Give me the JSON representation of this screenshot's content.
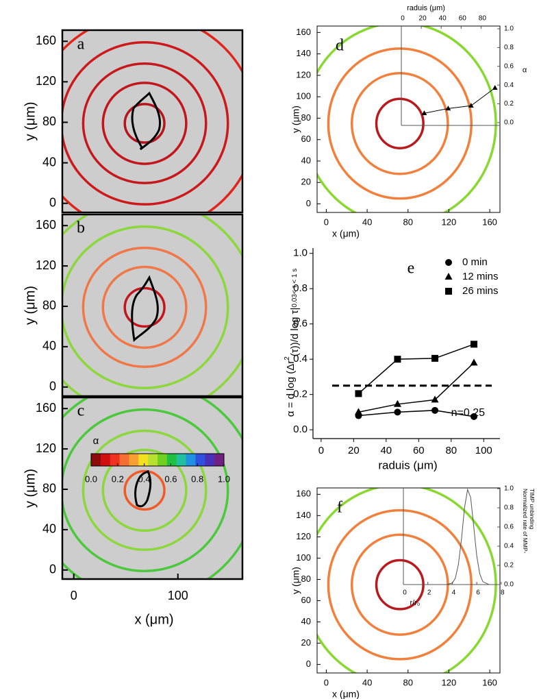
{
  "chart_data": [
    {
      "type": "rings",
      "label": "a",
      "ylabel": "y (μm)",
      "xlim": [
        -11,
        162
      ],
      "ylim": [
        -9,
        171
      ],
      "yticks": [
        0,
        40,
        80,
        120,
        160
      ],
      "center": [
        68,
        79
      ],
      "rings": [
        {
          "radius": 19,
          "color": "#b5141c"
        },
        {
          "radius": 40,
          "color": "#c0161c"
        },
        {
          "radius": 59,
          "color": "#c4181c"
        },
        {
          "radius": 80,
          "color": "#cc1a1c"
        },
        {
          "radius": 107,
          "color": "#e0261c"
        }
      ]
    },
    {
      "type": "rings",
      "label": "b",
      "ylabel": "y (μm)",
      "xlim": [
        -11,
        162
      ],
      "ylim": [
        -9,
        171
      ],
      "yticks": [
        0,
        40,
        80,
        120,
        160
      ],
      "center": [
        68,
        79
      ],
      "rings": [
        {
          "radius": 19,
          "color": "#c0161c"
        },
        {
          "radius": 40,
          "color": "#f07848"
        },
        {
          "radius": 59,
          "color": "#f07848"
        },
        {
          "radius": 80,
          "color": "#8cd83c"
        },
        {
          "radius": 107,
          "color": "#8cd83c"
        }
      ]
    },
    {
      "type": "rings",
      "label": "c",
      "ylabel": "y (μm)",
      "xlabel": "x (μm)",
      "xlim": [
        -11,
        162
      ],
      "ylim": [
        -9,
        171
      ],
      "xticks": [
        0,
        100
      ],
      "yticks": [
        0,
        40,
        80,
        120,
        160
      ],
      "center": [
        68,
        79
      ],
      "rings": [
        {
          "radius": 19,
          "color": "#f05a28"
        },
        {
          "radius": 40,
          "color": "#8cd83c"
        },
        {
          "radius": 59,
          "color": "#8cd83c"
        },
        {
          "radius": 80,
          "color": "#4cc83c"
        },
        {
          "radius": 107,
          "color": "#4cc83c"
        }
      ]
    },
    {
      "type": "rings",
      "label": "d",
      "ylabel": "y (μm)",
      "xlabel": "x (μm)",
      "xlim": [
        -9,
        170
      ],
      "ylim": [
        -8,
        166
      ],
      "xticks": [
        0,
        40,
        80,
        120,
        160
      ],
      "yticks": [
        0,
        20,
        40,
        60,
        80,
        100,
        120,
        140,
        160
      ],
      "center": [
        72,
        75
      ],
      "rings": [
        {
          "radius": 23,
          "color": "#b81a1e"
        },
        {
          "radius": 47,
          "color": "#f0803c"
        },
        {
          "radius": 70,
          "color": "#f0803c"
        },
        {
          "radius": 94,
          "color": "#88d830"
        }
      ],
      "inset": {
        "type": "line",
        "xlabel": "raduis (μm)",
        "ylabel": "α",
        "xlim": [
          0,
          99
        ],
        "ylim": [
          -0.03,
          1.0
        ],
        "xticks": [
          0,
          20,
          40,
          60,
          80
        ],
        "yticks": [
          {
            "value": 0,
            "label": "0.0"
          },
          {
            "value": 0.2,
            "label": "0.2"
          },
          {
            "value": 0.4,
            "label": "0.4"
          },
          {
            "value": 0.6,
            "label": "0.6"
          },
          {
            "value": 0.8,
            "label": "0.8"
          },
          {
            "value": 1.0,
            "label": "1.0"
          }
        ],
        "x": [
          23,
          47,
          70,
          94
        ],
        "values": [
          0.1,
          0.15,
          0.18,
          0.37
        ],
        "marker": "triangle",
        "color": "#000000"
      }
    },
    {
      "type": "line",
      "label": "e",
      "xlabel": "raduis (μm)",
      "ylabel": [
        "α = d log (Δr",
        "2",
        "(τ))/d log τ|",
        "0.03< τ < 1 s"
      ],
      "xlim": [
        -5,
        110
      ],
      "ylim": [
        -0.05,
        1.03
      ],
      "xticks": [
        0,
        20,
        40,
        60,
        80,
        100
      ],
      "yticks": [
        {
          "value": 0,
          "label": "0.0"
        },
        {
          "value": 0.2,
          "label": "0.2"
        },
        {
          "value": 0.4,
          "label": "0.4"
        },
        {
          "value": 0.6,
          "label": "0.6"
        },
        {
          "value": 0.8,
          "label": "0.8"
        },
        {
          "value": 1.0,
          "label": "1.0"
        }
      ],
      "x": [
        23,
        47,
        70,
        94
      ],
      "legend": "top-right",
      "series": [
        {
          "name": "0 min",
          "marker": "circle",
          "color": "#000000",
          "values": [
            0.08,
            0.1,
            0.11,
            0.075
          ]
        },
        {
          "name": "12 mins",
          "marker": "triangle",
          "color": "#000000",
          "values": [
            0.1,
            0.145,
            0.17,
            0.38
          ]
        },
        {
          "name": "26 mins",
          "marker": "square",
          "color": "#000000",
          "values": [
            0.205,
            0.4,
            0.405,
            0.485
          ]
        }
      ],
      "reference_line": {
        "value": 0.25,
        "label": "n=0.25"
      }
    },
    {
      "type": "rings",
      "label": "f",
      "ylabel": "y (μm)",
      "xlabel": "x (μm)",
      "xlim": [
        -9,
        170
      ],
      "ylim": [
        -8,
        166
      ],
      "xticks": [
        0,
        40,
        80,
        120,
        160
      ],
      "yticks": [
        0,
        20,
        40,
        60,
        80,
        100,
        120,
        140,
        160
      ],
      "center": [
        72,
        75
      ],
      "rings": [
        {
          "radius": 23,
          "color": "#b81a1e"
        },
        {
          "radius": 47,
          "color": "#f0803c"
        },
        {
          "radius": 70,
          "color": "#f0803c"
        },
        {
          "radius": 94,
          "color": "#88d830"
        }
      ],
      "inset": {
        "type": "line",
        "xlabel": "r/r₀",
        "ylabel": [
          "Normalized rate of MMP-",
          "TIMP unbinding"
        ],
        "xlim": [
          0,
          7.9
        ],
        "ylim": [
          0,
          1.0
        ],
        "xticks": [
          0,
          2,
          4,
          6,
          8
        ],
        "yticks": [
          {
            "value": 0,
            "label": "0.0"
          },
          {
            "value": 0.2,
            "label": "0.2"
          },
          {
            "value": 0.4,
            "label": "0.4"
          },
          {
            "value": 0.6,
            "label": "0.6"
          },
          {
            "value": 0.8,
            "label": "0.8"
          },
          {
            "value": 1.0,
            "label": "1.0"
          }
        ],
        "x": [
          0,
          1,
          2,
          3,
          3.5,
          4,
          4.25,
          4.5,
          4.75,
          5,
          5.25,
          5.5,
          5.75,
          6,
          6.25,
          6.5,
          7,
          7.9
        ],
        "values": [
          0,
          0,
          0,
          0,
          0,
          0.015,
          0.066,
          0.21,
          0.47,
          0.8,
          0.99,
          0.91,
          0.61,
          0.3,
          0.11,
          0.03,
          0,
          0
        ],
        "color": "#555555"
      }
    },
    {
      "type": "colorbar",
      "label": "α",
      "xlim": [
        0,
        1
      ],
      "colors": [
        "#8b0a0a",
        "#d01010",
        "#f03020",
        "#f57030",
        "#f5a030",
        "#f5e020",
        "#b8e030",
        "#70d020",
        "#20c040",
        "#20c0a0",
        "#2090e0",
        "#3050e0",
        "#4830b8",
        "#702080"
      ],
      "xticks": [
        {
          "value": 0,
          "label": "0.0"
        },
        {
          "value": 0.2,
          "label": "0.2"
        },
        {
          "value": 0.4,
          "label": "0.4"
        },
        {
          "value": 0.6,
          "label": "0.6"
        },
        {
          "value": 0.8,
          "label": "0.8"
        },
        {
          "value": 1.0,
          "label": "1.0"
        }
      ]
    }
  ]
}
